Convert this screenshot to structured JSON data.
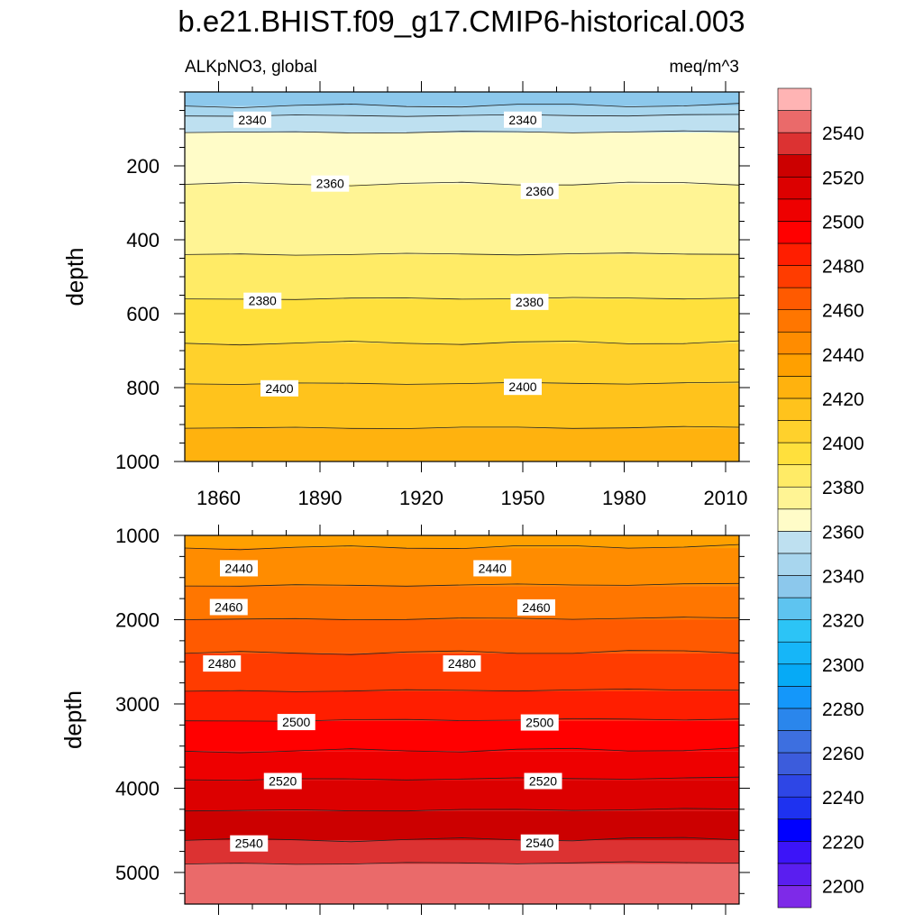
{
  "title": "b.e21.BHIST.f09_g17.CMIP6-historical.003",
  "chart_data": {
    "type": "heatmap",
    "subtype": "depth-time filled contour",
    "variable": "ALKpNO3",
    "region": "global",
    "left_subtitle": "ALKpNO3, global",
    "units": "meq/m^3",
    "colors": [
      "#7e2ae8",
      "#5a1ef0",
      "#3c14f8",
      "#0000ff",
      "#1e32f0",
      "#2e46e6",
      "#3c5cdc",
      "#3d6fe0",
      "#2a86ec",
      "#1497fa",
      "#06aaf6",
      "#16b6f8",
      "#2cc4f6",
      "#5ec4f0",
      "#8cc8ec",
      "#a8d6ee",
      "#bee0f0",
      "#fffcc8",
      "#fff494",
      "#ffeb66",
      "#ffe03c",
      "#ffd12c",
      "#ffc31c",
      "#ffb20e",
      "#ffa000",
      "#ff8c00",
      "#ff7600",
      "#ff5a00",
      "#ff3c00",
      "#ff1e00",
      "#ff0000",
      "#ee0000",
      "#dc0000",
      "#cc0000",
      "#dc3232",
      "#ea6a6a",
      "#ffb4b4"
    ],
    "colorbar": {
      "levels": [
        2200,
        2210,
        2220,
        2230,
        2240,
        2250,
        2260,
        2270,
        2280,
        2290,
        2300,
        2310,
        2320,
        2330,
        2340,
        2350,
        2360,
        2370,
        2380,
        2390,
        2400,
        2410,
        2420,
        2430,
        2440,
        2450,
        2460,
        2470,
        2480,
        2490,
        2500,
        2510,
        2520,
        2530,
        2540,
        2550
      ],
      "tick_labels": [
        "2200",
        "2220",
        "2240",
        "2260",
        "2280",
        "2300",
        "2320",
        "2340",
        "2360",
        "2380",
        "2400",
        "2420",
        "2440",
        "2460",
        "2480",
        "2500",
        "2520",
        "2540"
      ]
    },
    "panels": [
      {
        "name": "upper",
        "x_range": [
          1850,
          2014
        ],
        "ylim": [
          1000,
          0
        ],
        "ylabel": "depth",
        "x_ticks": [
          1860,
          1890,
          1920,
          1950,
          1980,
          2010
        ],
        "x_tick_labels": [
          "1860",
          "1890",
          "1920",
          "1950",
          "1980",
          "2010"
        ],
        "y_ticks": [
          200,
          400,
          600,
          800,
          1000
        ],
        "y_tick_labels": [
          "200",
          "400",
          "600",
          "800",
          "1000"
        ],
        "bands": [
          {
            "value": 2330,
            "top": 0,
            "bottom": 38
          },
          {
            "value": 2340,
            "top": 38,
            "bottom": 65
          },
          {
            "value": 2350,
            "top": 65,
            "bottom": 110
          },
          {
            "value": 2360,
            "top": 110,
            "bottom": 250
          },
          {
            "value": 2370,
            "top": 250,
            "bottom": 440
          },
          {
            "value": 2380,
            "top": 440,
            "bottom": 560
          },
          {
            "value": 2390,
            "top": 560,
            "bottom": 680
          },
          {
            "value": 2400,
            "top": 680,
            "bottom": 790
          },
          {
            "value": 2410,
            "top": 790,
            "bottom": 910
          },
          {
            "value": 2420,
            "top": 910,
            "bottom": 1000
          }
        ],
        "contours": [
          38,
          65,
          110,
          250,
          440,
          560,
          680,
          790,
          910
        ],
        "contour_labels": [
          {
            "text": "2340",
            "year": 1870,
            "depth": 75
          },
          {
            "text": "2340",
            "year": 1950,
            "depth": 75
          },
          {
            "text": "2360",
            "year": 1893,
            "depth": 248
          },
          {
            "text": "2360",
            "year": 1955,
            "depth": 268
          },
          {
            "text": "2380",
            "year": 1873,
            "depth": 565
          },
          {
            "text": "2380",
            "year": 1952,
            "depth": 568
          },
          {
            "text": "2400",
            "year": 1878,
            "depth": 802
          },
          {
            "text": "2400",
            "year": 1950,
            "depth": 798
          }
        ]
      },
      {
        "name": "lower",
        "x_range": [
          1850,
          2014
        ],
        "ylim": [
          5375,
          1000
        ],
        "ylabel": "depth",
        "x_ticks": [
          1860,
          1890,
          1920,
          1950,
          1980,
          2010
        ],
        "y_ticks": [
          1000,
          2000,
          3000,
          4000,
          5000
        ],
        "y_tick_labels": [
          "1000",
          "2000",
          "3000",
          "4000",
          "5000"
        ],
        "bands": [
          {
            "value": 2430,
            "top": 1000,
            "bottom": 1150
          },
          {
            "value": 2440,
            "top": 1150,
            "bottom": 1600
          },
          {
            "value": 2450,
            "top": 1600,
            "bottom": 2000
          },
          {
            "value": 2460,
            "top": 2000,
            "bottom": 2400
          },
          {
            "value": 2470,
            "top": 2400,
            "bottom": 2850
          },
          {
            "value": 2480,
            "top": 2850,
            "bottom": 3200
          },
          {
            "value": 2490,
            "top": 3200,
            "bottom": 3560
          },
          {
            "value": 2500,
            "top": 3560,
            "bottom": 3900
          },
          {
            "value": 2510,
            "top": 3900,
            "bottom": 4270
          },
          {
            "value": 2520,
            "top": 4270,
            "bottom": 4620
          },
          {
            "value": 2530,
            "top": 4620,
            "bottom": 4900
          },
          {
            "value": 2540,
            "top": 4900,
            "bottom": 5375
          }
        ],
        "contours": [
          1150,
          1600,
          2000,
          2400,
          2850,
          3200,
          3560,
          3900,
          4270,
          4620,
          4900
        ],
        "contour_labels": [
          {
            "text": "2440",
            "year": 1866,
            "depth": 1390
          },
          {
            "text": "2440",
            "year": 1941,
            "depth": 1390
          },
          {
            "text": "2460",
            "year": 1863,
            "depth": 1850
          },
          {
            "text": "2460",
            "year": 1954,
            "depth": 1855
          },
          {
            "text": "2480",
            "year": 1861,
            "depth": 2520
          },
          {
            "text": "2480",
            "year": 1932,
            "depth": 2520
          },
          {
            "text": "2500",
            "year": 1883,
            "depth": 3215
          },
          {
            "text": "2500",
            "year": 1955,
            "depth": 3220
          },
          {
            "text": "2520",
            "year": 1879,
            "depth": 3915
          },
          {
            "text": "2520",
            "year": 1956,
            "depth": 3915
          },
          {
            "text": "2540",
            "year": 1869,
            "depth": 4655
          },
          {
            "text": "2540",
            "year": 1955,
            "depth": 4645
          }
        ]
      }
    ]
  }
}
